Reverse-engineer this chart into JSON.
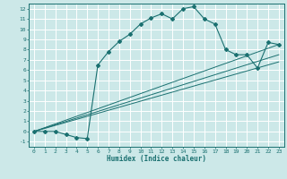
{
  "title": "",
  "xlabel": "Humidex (Indice chaleur)",
  "bg_color": "#cce8e8",
  "grid_color": "#ffffff",
  "line_color": "#1a7070",
  "xlim": [
    -0.5,
    23.5
  ],
  "ylim": [
    -1.5,
    12.5
  ],
  "xticks": [
    0,
    1,
    2,
    3,
    4,
    5,
    6,
    7,
    8,
    9,
    10,
    11,
    12,
    13,
    14,
    15,
    16,
    17,
    18,
    19,
    20,
    21,
    22,
    23
  ],
  "yticks": [
    -1,
    0,
    1,
    2,
    3,
    4,
    5,
    6,
    7,
    8,
    9,
    10,
    11,
    12
  ],
  "main_curve": {
    "x": [
      0,
      1,
      2,
      3,
      4,
      5,
      6,
      7,
      8,
      9,
      10,
      11,
      12,
      13,
      14,
      15,
      16,
      17,
      18,
      19,
      20,
      21,
      22,
      23
    ],
    "y": [
      0,
      0,
      0,
      -0.3,
      -0.6,
      -0.7,
      6.5,
      7.8,
      8.8,
      9.5,
      10.5,
      11.1,
      11.5,
      11.0,
      12.0,
      12.2,
      11.0,
      10.5,
      8.0,
      7.5,
      7.5,
      6.2,
      8.7,
      8.5
    ]
  },
  "linear_curves": [
    {
      "x": [
        0,
        23
      ],
      "y": [
        0,
        8.5
      ]
    },
    {
      "x": [
        0,
        23
      ],
      "y": [
        0,
        7.5
      ]
    },
    {
      "x": [
        0,
        23
      ],
      "y": [
        0,
        6.8
      ]
    }
  ]
}
